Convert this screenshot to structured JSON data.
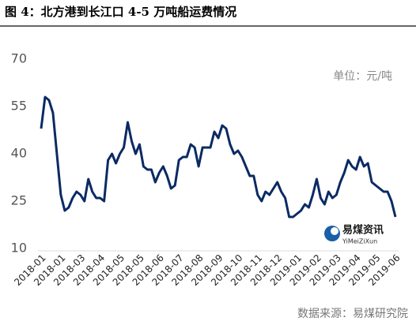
{
  "chart_data": {
    "type": "line",
    "title": "图 4：北方港到长江口 4-5 万吨船运费情况",
    "unit": "单位：元/吨",
    "source": "数据来源：易煤研究院",
    "logo": {
      "name": "易煤资讯",
      "sub": "YiMeiZiXun"
    },
    "categories": [
      "2018-01",
      null,
      null,
      null,
      null,
      "2018-01",
      null,
      null,
      null,
      null,
      "2018-03",
      null,
      null,
      null,
      null,
      "2018-04",
      null,
      null,
      null,
      null,
      "2018-05",
      null,
      null,
      null,
      null,
      "2018-05",
      null,
      null,
      null,
      null,
      "2018-06",
      null,
      null,
      null,
      null,
      "2018-07",
      null,
      null,
      null,
      null,
      "2018-08",
      null,
      null,
      null,
      null,
      "2018-09",
      null,
      null,
      null,
      null,
      "2018-10",
      null,
      null,
      null,
      null,
      "2018-11",
      null,
      null,
      null,
      null,
      "2018-12",
      null,
      null,
      null,
      null,
      "2019-01",
      null,
      null,
      null,
      null,
      "2019-02",
      null,
      null,
      null,
      null,
      "2019-03",
      null,
      null,
      null,
      null,
      "2019-04",
      null,
      null,
      null,
      null,
      "2019-05",
      null,
      null,
      null,
      null,
      "2019-06"
    ],
    "series": [
      {
        "color": "#0b2a63",
        "values": [
          48,
          58,
          57,
          53,
          40,
          27,
          22,
          23,
          26,
          28,
          27,
          25,
          32,
          28,
          26,
          26,
          25,
          38,
          40,
          37,
          40,
          42,
          50,
          44,
          40,
          43,
          36,
          35,
          35,
          31,
          34,
          36,
          33,
          29,
          30,
          38,
          39,
          39,
          43,
          42,
          36,
          42,
          42,
          42,
          47,
          45,
          49,
          48,
          43,
          40,
          41,
          39,
          36,
          33,
          33,
          27,
          25,
          28,
          27,
          29,
          31,
          28,
          26,
          20,
          20,
          21,
          22,
          24,
          23,
          27,
          32,
          26,
          24,
          28,
          26,
          27,
          31,
          34,
          38,
          36,
          35,
          39,
          36,
          37,
          31,
          30,
          29,
          28,
          28,
          25,
          20
        ]
      }
    ],
    "ylim": [
      10,
      70
    ],
    "yticks": [
      10,
      25,
      40,
      55,
      70
    ],
    "grid": false
  }
}
